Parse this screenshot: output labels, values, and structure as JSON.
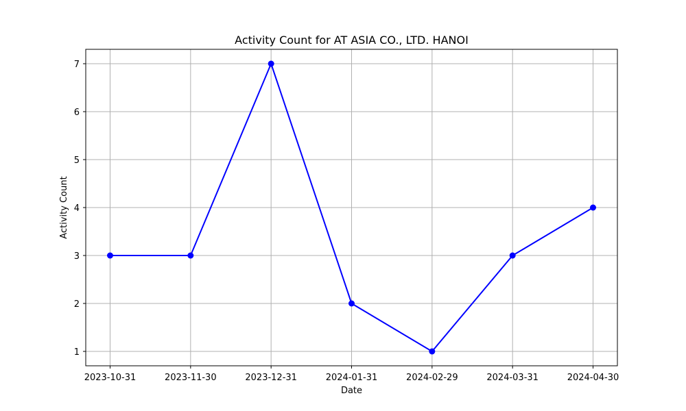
{
  "chart_data": {
    "type": "line",
    "title": "Activity Count for AT ASIA CO., LTD. HANOI",
    "xlabel": "Date",
    "ylabel": "Activity Count",
    "x": [
      "2023-10-31",
      "2023-11-30",
      "2023-12-31",
      "2024-01-31",
      "2024-02-29",
      "2024-03-31",
      "2024-04-30"
    ],
    "series": [
      {
        "values": [
          3,
          3,
          7,
          2,
          1,
          3,
          4
        ],
        "color": "#0000ff",
        "marker": "circle"
      }
    ],
    "yticks": [
      1,
      2,
      3,
      4,
      5,
      6,
      7
    ],
    "ylim": [
      0.7,
      7.3
    ],
    "grid": true,
    "legend": "none"
  },
  "colors": {
    "line": "#0000ff",
    "grid": "#b0b0b0",
    "axes": "#000000"
  }
}
